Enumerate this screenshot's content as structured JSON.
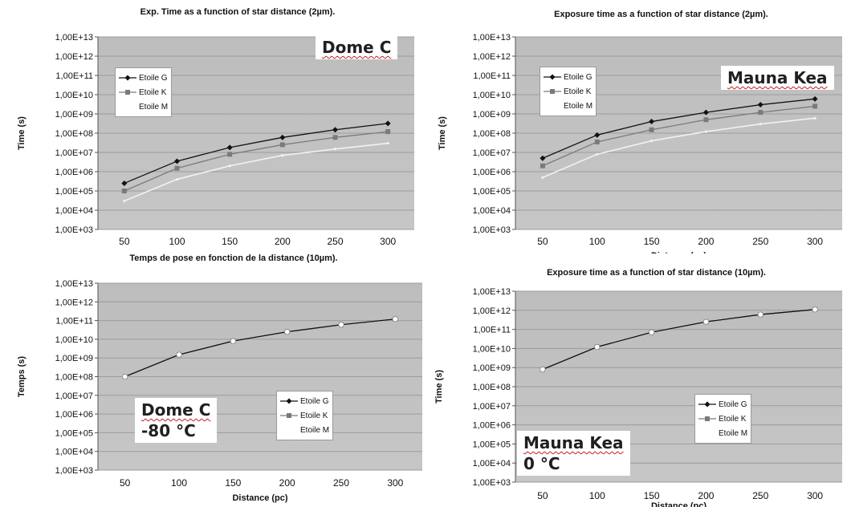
{
  "chart_data": [
    {
      "type": "line",
      "title": "Exp. Time as a function of star distance (2µm).",
      "xlabel": "",
      "ylabel": "Time (s)",
      "x": [
        50,
        100,
        150,
        200,
        250,
        300
      ],
      "ylim": [
        1000,
        10000000000000
      ],
      "yscale": "log",
      "grid": true,
      "legend": "top-left",
      "ytick_labels": [
        "1,00E+13",
        "1,00E+12",
        "1,00E+11",
        "1,00E+10",
        "1,00E+09",
        "1,00E+08",
        "1,00E+07",
        "1,00E+06",
        "1,00E+05",
        "1,00E+04",
        "1,00E+03"
      ],
      "xtick_labels": [
        "50",
        "100",
        "150",
        "200",
        "250",
        "300"
      ],
      "annotation": "Dome C",
      "series": [
        {
          "name": "Etoile G",
          "values": [
            250000,
            3500000,
            18000000,
            60000000,
            150000000,
            320000000
          ]
        },
        {
          "name": "Etoile K",
          "values": [
            100000,
            1500000,
            8000000,
            25000000,
            60000000,
            120000000
          ]
        },
        {
          "name": "Etoile M",
          "values": [
            30000,
            400000,
            2000000,
            7000000,
            15000000,
            30000000
          ]
        }
      ]
    },
    {
      "type": "line",
      "title": "Exposure time as a function of star distance (2µm).",
      "xlabel": "Distance (pc)",
      "ylabel": "Time (s)",
      "x": [
        50,
        100,
        150,
        200,
        250,
        300
      ],
      "ylim": [
        1000,
        10000000000000
      ],
      "yscale": "log",
      "grid": true,
      "legend": "top-left",
      "ytick_labels": [
        "1,00E+13",
        "1,00E+12",
        "1,00E+11",
        "1,00E+10",
        "1,00E+09",
        "1,00E+08",
        "1,00E+07",
        "1,00E+06",
        "1,00E+05",
        "1,00E+04",
        "1,00E+03"
      ],
      "xtick_labels": [
        "50",
        "100",
        "150",
        "200",
        "250",
        "300"
      ],
      "annotation": "Mauna Kea",
      "series": [
        {
          "name": "Etoile G",
          "values": [
            5000000,
            80000000,
            400000000,
            1200000000,
            3000000000,
            6000000000
          ]
        },
        {
          "name": "Etoile K",
          "values": [
            2000000,
            35000000,
            150000000,
            500000000,
            1200000000,
            2500000000
          ]
        },
        {
          "name": "Etoile M",
          "values": [
            500000,
            8000000,
            40000000,
            120000000,
            300000000,
            600000000
          ]
        }
      ]
    },
    {
      "type": "line",
      "title": "Temps de pose en fonction de la distance (10µm).",
      "xlabel": "Distance (pc)",
      "ylabel": "Temps (s)",
      "x": [
        50,
        100,
        150,
        200,
        250,
        300
      ],
      "ylim": [
        1000,
        10000000000000
      ],
      "yscale": "log",
      "grid": true,
      "legend": "bottom-right",
      "ytick_labels": [
        "1,00E+13",
        "1,00E+12",
        "1,00E+11",
        "1,00E+10",
        "1,00E+09",
        "1,00E+08",
        "1,00E+07",
        "1,00E+06",
        "1,00E+05",
        "1,00E+04",
        "1,00E+03"
      ],
      "xtick_labels": [
        "50",
        "100",
        "150",
        "200",
        "250",
        "300"
      ],
      "annotation": "Dome C",
      "annotation2": "-80 °C",
      "series": [
        {
          "name": "Etoile G",
          "values": [
            100000000,
            1500000000,
            8000000000,
            25000000000,
            60000000000,
            120000000000
          ]
        },
        {
          "name": "Etoile K",
          "values": [
            100000000,
            1500000000,
            8000000000,
            25000000000,
            60000000000,
            120000000000
          ]
        },
        {
          "name": "Etoile M",
          "values": [
            100000000,
            1500000000,
            8000000000,
            25000000000,
            60000000000,
            120000000000
          ]
        }
      ]
    },
    {
      "type": "line",
      "title": "Exposure time as a function of star distance (10µm).",
      "xlabel": "Distance (pc)",
      "ylabel": "Time (s)",
      "x": [
        50,
        100,
        150,
        200,
        250,
        300
      ],
      "ylim": [
        1000,
        10000000000000
      ],
      "yscale": "log",
      "grid": true,
      "legend": "bottom-right",
      "ytick_labels": [
        "1,00E+13",
        "1,00E+12",
        "1,00E+11",
        "1,00E+10",
        "1,00E+09",
        "1,00E+08",
        "1,00E+07",
        "1,00E+06",
        "1,00E+05",
        "1,00E+04",
        "1,00E+03"
      ],
      "xtick_labels": [
        "50",
        "100",
        "150",
        "200",
        "250",
        "300"
      ],
      "annotation": "Mauna Kea",
      "annotation2": "0 °C",
      "series": [
        {
          "name": "Etoile G",
          "values": [
            800000000,
            12000000000,
            70000000000,
            250000000000,
            600000000000,
            1100000000000
          ]
        },
        {
          "name": "Etoile K",
          "values": [
            800000000,
            12000000000,
            70000000000,
            250000000000,
            600000000000,
            1100000000000
          ]
        },
        {
          "name": "Etoile M",
          "values": [
            800000000,
            12000000000,
            70000000000,
            250000000000,
            600000000000,
            1100000000000
          ]
        }
      ]
    }
  ],
  "style": {
    "plot_bg_top": "#bdbdbd",
    "plot_bg_bottom": "#c6c6c6",
    "grid_color": "#9c9c9c",
    "series_colors": [
      "#111111",
      "#7a7a7a",
      "#f2f2f2"
    ]
  }
}
